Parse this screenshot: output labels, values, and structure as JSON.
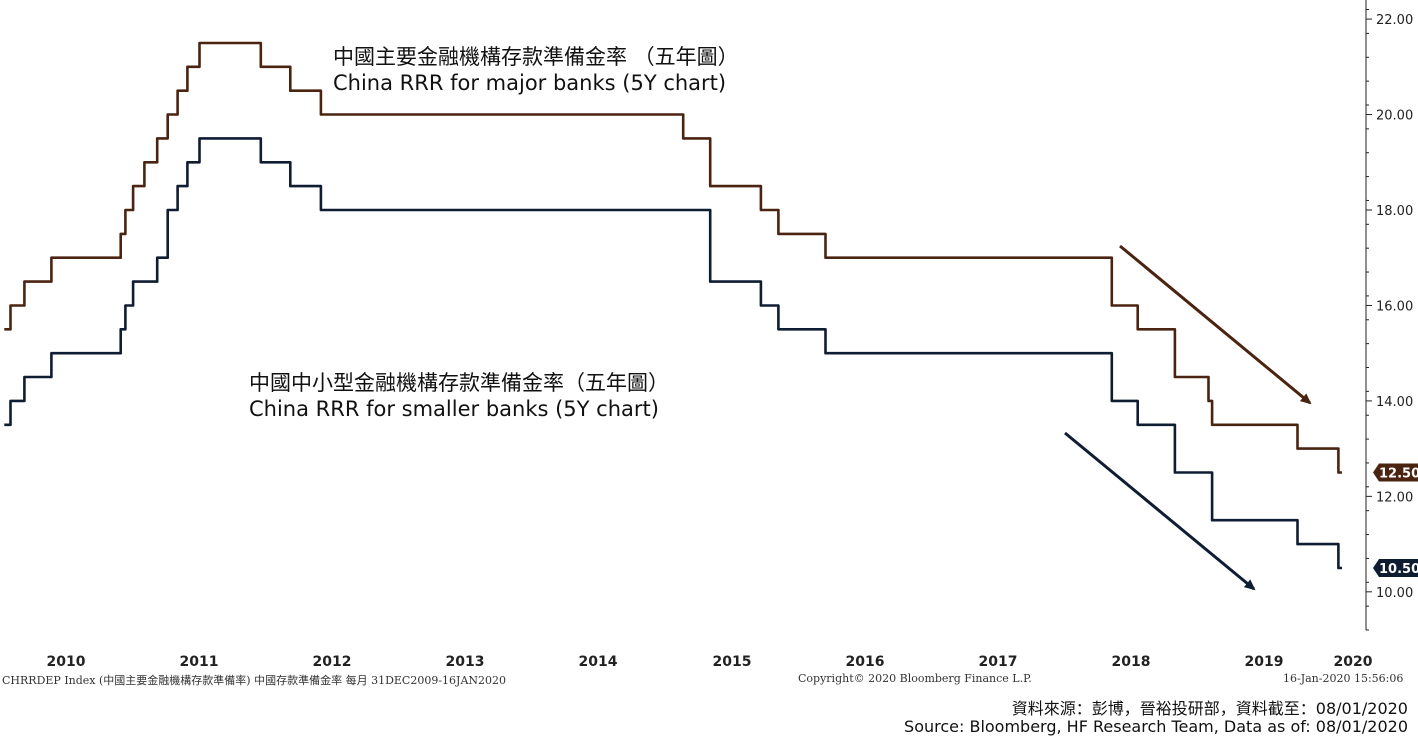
{
  "chart_data": {
    "type": "line",
    "ylim": [
      9.2,
      22.4
    ],
    "y_ticks": [
      "10.00",
      "12.00",
      "14.00",
      "16.00",
      "18.00",
      "20.00",
      "22.00"
    ],
    "x_tick_labels": [
      "2010",
      "2011",
      "2012",
      "2013",
      "2014",
      "2015",
      "2016",
      "2017",
      "2018",
      "2019",
      "2020"
    ],
    "series": [
      {
        "name": "China RRR for major banks (5Y chart)",
        "color": "#4a2410",
        "last_value": "12.50",
        "points": [
          [
            "2010-01-01",
            15.5
          ],
          [
            "2010-01-18",
            16.0
          ],
          [
            "2010-02-25",
            16.5
          ],
          [
            "2010-05-10",
            17.0
          ],
          [
            "2010-11-16",
            17.5
          ],
          [
            "2010-11-29",
            18.0
          ],
          [
            "2010-12-20",
            18.5
          ],
          [
            "2011-01-20",
            19.0
          ],
          [
            "2011-02-24",
            19.5
          ],
          [
            "2011-03-25",
            20.0
          ],
          [
            "2011-04-21",
            20.5
          ],
          [
            "2011-05-18",
            21.0
          ],
          [
            "2011-06-20",
            21.5
          ],
          [
            "2011-12-05",
            21.0
          ],
          [
            "2012-02-24",
            20.5
          ],
          [
            "2012-05-18",
            20.0
          ],
          [
            "2015-02-05",
            19.5
          ],
          [
            "2015-04-20",
            18.5
          ],
          [
            "2015-09-06",
            18.0
          ],
          [
            "2015-10-24",
            17.5
          ],
          [
            "2016-03-01",
            17.0
          ],
          [
            "2018-04-25",
            16.0
          ],
          [
            "2018-07-05",
            15.5
          ],
          [
            "2018-10-15",
            14.5
          ],
          [
            "2019-01-15",
            14.0
          ],
          [
            "2019-01-25",
            13.5
          ],
          [
            "2019-09-16",
            13.0
          ],
          [
            "2020-01-06",
            12.5
          ],
          [
            "2020-01-16",
            12.5
          ]
        ]
      },
      {
        "name": "China RRR for smaller banks (5Y chart)",
        "color": "#0f1d33",
        "last_value": "10.50",
        "points": [
          [
            "2010-01-01",
            13.5
          ],
          [
            "2010-01-18",
            14.0
          ],
          [
            "2010-02-25",
            14.5
          ],
          [
            "2010-05-10",
            15.0
          ],
          [
            "2010-11-16",
            15.5
          ],
          [
            "2010-11-29",
            16.0
          ],
          [
            "2010-12-20",
            16.5
          ],
          [
            "2011-02-24",
            17.0
          ],
          [
            "2011-03-25",
            18.0
          ],
          [
            "2011-04-21",
            18.5
          ],
          [
            "2011-05-18",
            19.0
          ],
          [
            "2011-06-20",
            19.5
          ],
          [
            "2011-12-05",
            19.0
          ],
          [
            "2012-02-24",
            18.5
          ],
          [
            "2012-05-18",
            18.0
          ],
          [
            "2015-04-20",
            16.5
          ],
          [
            "2015-09-06",
            16.0
          ],
          [
            "2015-10-24",
            15.5
          ],
          [
            "2016-03-01",
            15.0
          ],
          [
            "2018-04-25",
            14.0
          ],
          [
            "2018-07-05",
            13.5
          ],
          [
            "2018-10-15",
            12.5
          ],
          [
            "2019-01-25",
            11.5
          ],
          [
            "2019-09-16",
            11.0
          ],
          [
            "2020-01-06",
            10.5
          ],
          [
            "2020-01-16",
            10.5
          ]
        ]
      }
    ]
  },
  "annotations": {
    "major_cn": "中國主要金融機構存款準備金率 （五年圖）",
    "major_en": "China RRR for major banks (5Y chart)",
    "smaller_cn": "中國中小型金融機構存款準備金率（五年圖）",
    "smaller_en": "China RRR for smaller banks (5Y chart)"
  },
  "footer": {
    "index_text": "CHRRDEP Index (中國主要金融機構存款準備率) 中國存款準備金率   每月 31DEC2009-16JAN2020",
    "copyright": "Copyright© 2020 Bloomberg Finance L.P.",
    "timestamp": "16-Jan-2020 15:56:06",
    "source_cn": "資料來源：彭博，晉裕投研部，資料截至：08/01/2020",
    "source_en": "Source: Bloomberg, HF Research Team, Data as of: 08/01/2020"
  }
}
